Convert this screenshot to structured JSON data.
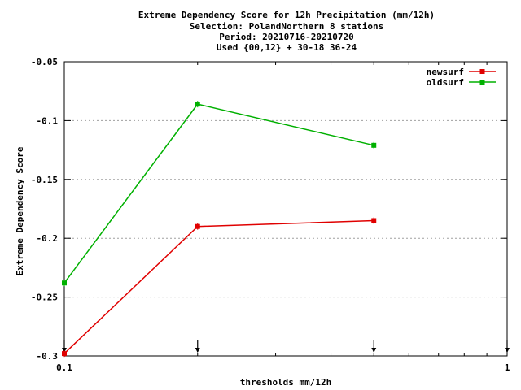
{
  "chart_data": {
    "type": "line",
    "title_lines": [
      "Extreme Dependency Score  for 12h Precipitation (mm/12h)",
      "Selection: PolandNorthern      8 stations",
      "Period: 20210716-20210720",
      "Used {00,12} + 30-18 36-24"
    ],
    "xlabel": "thresholds mm/12h",
    "ylabel": "Extreme Dependency Score",
    "x_scale": "log",
    "xlim": [
      0.1,
      1
    ],
    "ylim": [
      -0.3,
      -0.05
    ],
    "x_tick_labels": [
      {
        "value": 0.1,
        "label": "0.1"
      },
      {
        "value": 1,
        "label": "1"
      }
    ],
    "y_ticks": [
      {
        "value": -0.05,
        "label": "-0.05"
      },
      {
        "value": -0.1,
        "label": "-0.1"
      },
      {
        "value": -0.15,
        "label": "-0.15"
      },
      {
        "value": -0.2,
        "label": "-0.2"
      },
      {
        "value": -0.25,
        "label": "-0.25"
      },
      {
        "value": -0.3,
        "label": "-0.3"
      }
    ],
    "grid": "horizontal dotted",
    "legend_position": "top-right",
    "threshold_markers": [
      0.1,
      0.2,
      0.5,
      1
    ],
    "series": [
      {
        "name": "newsurf",
        "color": "#e00000",
        "x": [
          0.1,
          0.2,
          0.5
        ],
        "y": [
          -0.298,
          -0.19,
          -0.185
        ]
      },
      {
        "name": "oldsurf",
        "color": "#00b000",
        "x": [
          0.1,
          0.2,
          0.5
        ],
        "y": [
          -0.238,
          -0.086,
          -0.121
        ]
      }
    ]
  }
}
